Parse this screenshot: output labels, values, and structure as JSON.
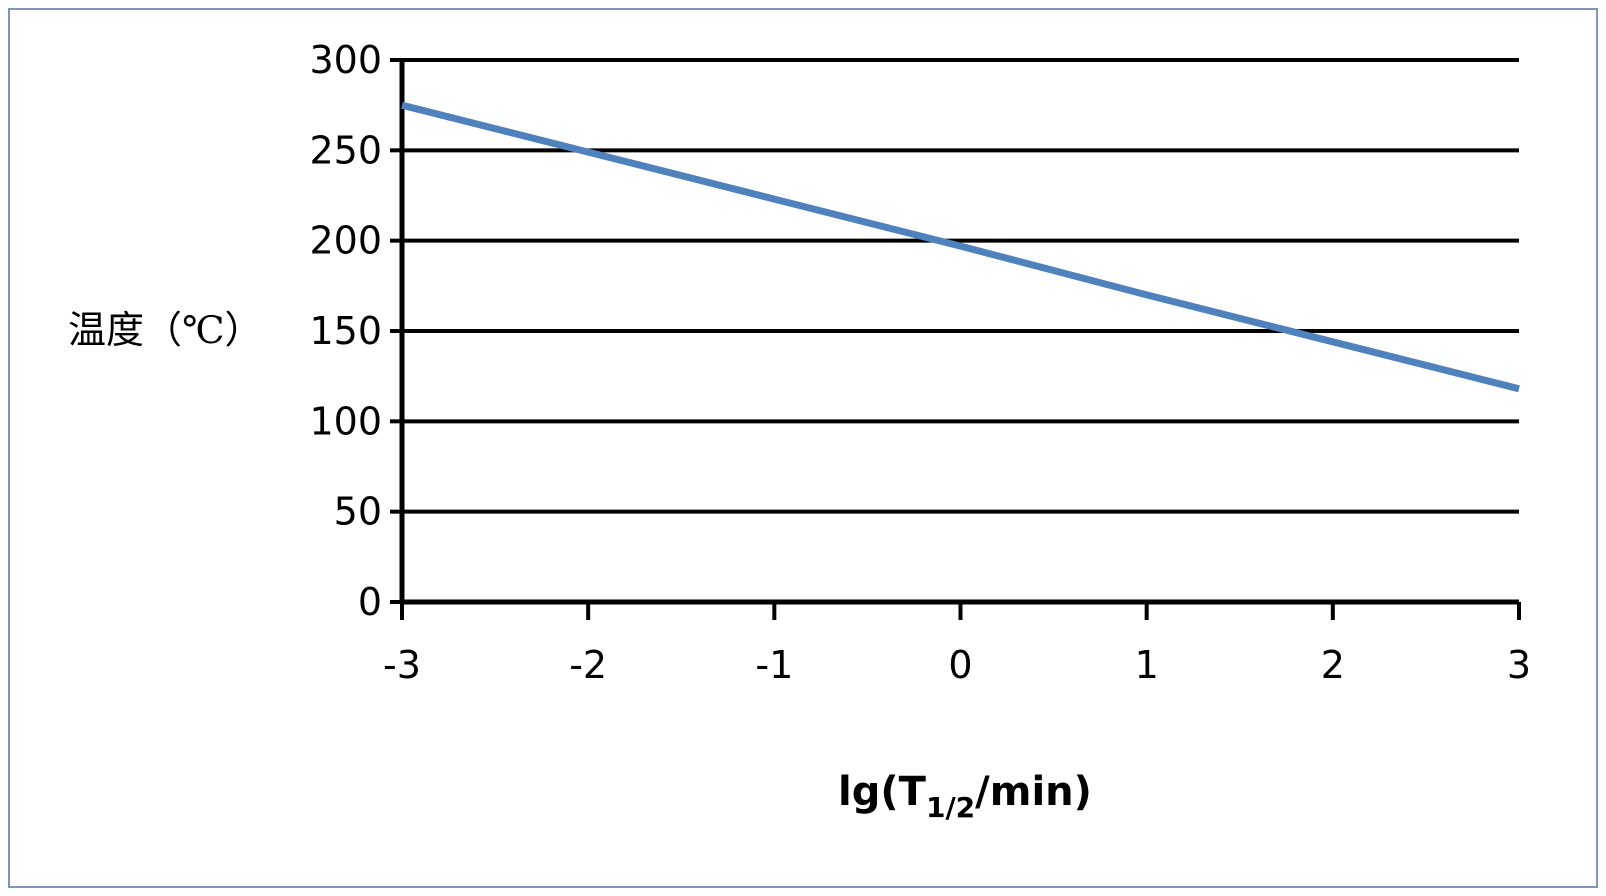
{
  "chart_data": {
    "type": "line",
    "xlabel": "lg(T1/2/min)",
    "xlabel_parts": {
      "base": "lg(T",
      "subscript": "1/2",
      "tail": "/min)"
    },
    "ylabel": "温度（℃）",
    "xlim": [
      -3,
      3
    ],
    "ylim": [
      0,
      300
    ],
    "x_ticks": [
      -3,
      -2,
      -1,
      0,
      1,
      2,
      3
    ],
    "x_tick_labels": [
      "-3",
      "-2",
      "-1",
      "0",
      "1",
      "2",
      "3"
    ],
    "y_ticks": [
      0,
      50,
      100,
      150,
      200,
      250,
      300
    ],
    "y_tick_labels": [
      "0",
      "50",
      "100",
      "150",
      "200",
      "250",
      "300"
    ],
    "grid": "horizontal",
    "legend": "none",
    "series": [
      {
        "x": [
          -3,
          -2,
          -1,
          0,
          1,
          2,
          3
        ],
        "y": [
          275,
          249,
          223,
          197,
          170,
          144,
          118
        ]
      }
    ],
    "colors": {
      "line": "#4f81bd",
      "axis": "#000000",
      "grid": "#000000",
      "frame_border": "#7f95b8"
    }
  }
}
